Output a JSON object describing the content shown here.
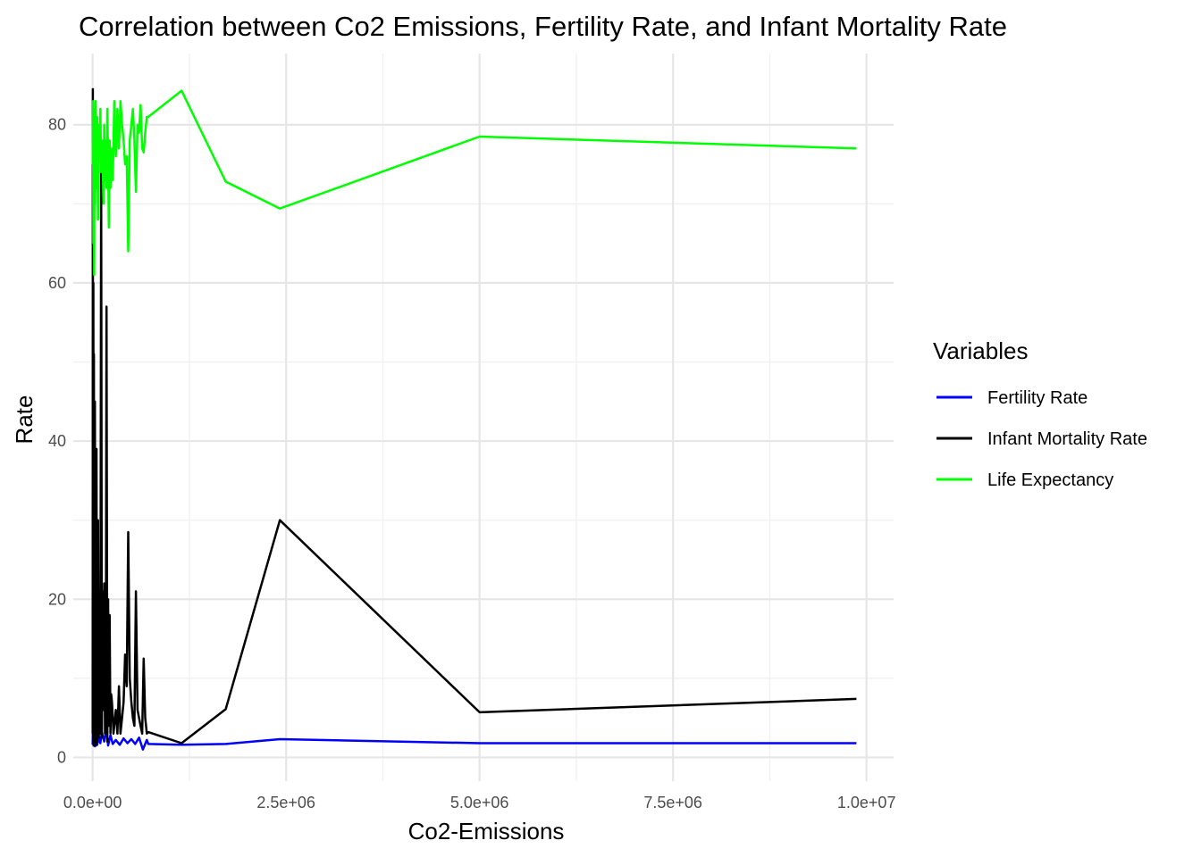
{
  "chart_data": {
    "type": "line",
    "title": "Correlation between Co2 Emissions, Fertility Rate, and Infant Mortality Rate",
    "xlabel": "Co2-Emissions",
    "ylabel": "Rate",
    "xlim": [
      -250000,
      10350000
    ],
    "ylim": [
      -3,
      89
    ],
    "x_ticks": [
      0,
      2500000,
      5000000,
      7500000,
      10000000
    ],
    "x_tick_labels": [
      "0.0e+00",
      "2.5e+06",
      "5.0e+06",
      "7.5e+06",
      "1.0e+07"
    ],
    "y_ticks": [
      0,
      20,
      40,
      60,
      80
    ],
    "y_tick_labels": [
      "0",
      "20",
      "40",
      "60",
      "80"
    ],
    "grid": true,
    "legend": {
      "title": "Variables",
      "position": "right"
    },
    "series": [
      {
        "name": "Fertility Rate",
        "color": "#0000ff",
        "x": [
          0,
          5000,
          10000,
          20000,
          30000,
          45000,
          60000,
          80000,
          100000,
          120000,
          150000,
          180000,
          200000,
          230000,
          260000,
          300000,
          350000,
          400000,
          450000,
          500000,
          550000,
          600000,
          650000,
          700000,
          720000,
          1150000,
          1720000,
          2420000,
          5000000,
          9870000
        ],
        "y": [
          1.6,
          4.5,
          2.2,
          3.8,
          1.4,
          2.9,
          1.6,
          2.6,
          1.8,
          3.2,
          2.0,
          3.6,
          1.5,
          2.8,
          1.7,
          2.2,
          1.6,
          2.4,
          1.8,
          2.3,
          1.7,
          2.5,
          1.0,
          2.2,
          1.7,
          1.6,
          1.7,
          2.3,
          1.8,
          1.8
        ]
      },
      {
        "name": "Infant Mortality Rate",
        "color": "#000000",
        "x": [
          0,
          3000,
          6000,
          10000,
          13000,
          17000,
          20000,
          25000,
          30000,
          35000,
          40000,
          45000,
          50000,
          55000,
          60000,
          70000,
          80000,
          90000,
          100000,
          110000,
          120000,
          130000,
          140000,
          150000,
          160000,
          170000,
          180000,
          190000,
          200000,
          210000,
          220000,
          230000,
          240000,
          250000,
          260000,
          270000,
          280000,
          300000,
          320000,
          340000,
          360000,
          380000,
          400000,
          420000,
          440000,
          460000,
          480000,
          500000,
          520000,
          540000,
          560000,
          580000,
          600000,
          620000,
          640000,
          660000,
          680000,
          700000,
          720000,
          1150000,
          1720000,
          2420000,
          5000000,
          9870000
        ],
        "y": [
          3,
          84.5,
          2,
          60,
          1.5,
          51,
          4,
          2,
          45,
          2,
          20,
          1.5,
          39,
          3,
          2,
          30,
          2.5,
          21,
          3,
          75.5,
          2.5,
          21,
          6,
          22,
          3,
          6,
          57,
          2,
          20,
          4,
          18,
          3,
          8,
          7,
          5,
          3,
          4,
          6,
          3,
          9,
          3,
          5,
          7,
          13,
          9,
          28.5,
          10,
          7,
          5,
          4,
          21,
          6,
          5,
          4,
          3,
          12.5,
          5,
          3,
          3.2,
          1.8,
          6.1,
          30,
          5.7,
          7.4
        ]
      },
      {
        "name": "Life Expectancy",
        "color": "#00ff00",
        "x": [
          0,
          5000,
          10000,
          15000,
          20000,
          25000,
          30000,
          40000,
          50000,
          60000,
          70000,
          80000,
          90000,
          100000,
          110000,
          120000,
          130000,
          140000,
          150000,
          160000,
          170000,
          180000,
          190000,
          200000,
          210000,
          220000,
          230000,
          240000,
          250000,
          260000,
          280000,
          300000,
          320000,
          340000,
          360000,
          380000,
          400000,
          420000,
          440000,
          460000,
          480000,
          500000,
          520000,
          540000,
          560000,
          580000,
          600000,
          620000,
          640000,
          660000,
          680000,
          700000,
          720000,
          1150000,
          1720000,
          2420000,
          5000000,
          9870000
        ],
        "y": [
          75,
          83,
          65,
          82,
          61,
          78,
          70,
          83,
          72,
          81,
          68,
          80,
          76,
          82,
          74,
          78,
          75,
          70,
          80,
          73,
          78,
          72,
          82,
          76,
          67,
          78,
          72,
          75,
          77,
          73,
          83,
          76,
          82,
          77,
          83,
          80,
          78,
          75,
          76,
          64,
          78,
          80,
          82,
          78,
          71.5,
          80,
          79,
          82.5,
          77,
          76.5,
          79,
          81,
          81,
          84.3,
          72.8,
          69.4,
          78.5,
          77
        ]
      }
    ]
  }
}
